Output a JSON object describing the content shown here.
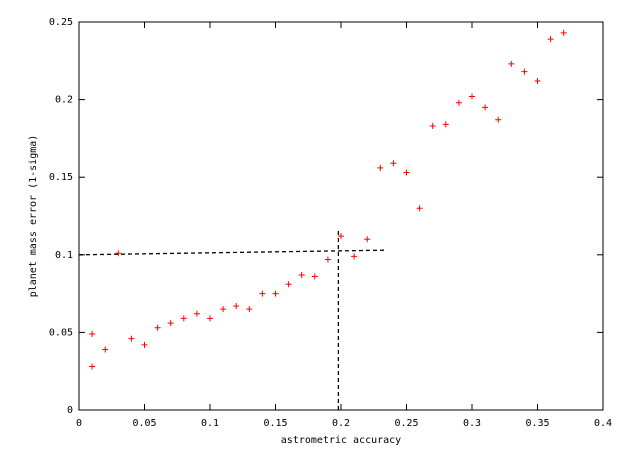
{
  "chart_data": {
    "type": "scatter",
    "xlabel": "astrometric accuracy",
    "ylabel": "planet mass error (1-sigma)",
    "xlim": [
      0,
      0.4
    ],
    "ylim": [
      0,
      0.25
    ],
    "xticks": [
      0,
      0.05,
      0.1,
      0.15,
      0.2,
      0.25,
      0.3,
      0.35,
      0.4
    ],
    "yticks": [
      0,
      0.05,
      0.1,
      0.15,
      0.2,
      0.25
    ],
    "series": [
      {
        "color": "#ff0000",
        "x": [
          0.01,
          0.01,
          0.02,
          0.03,
          0.04,
          0.05,
          0.06,
          0.07,
          0.08,
          0.09,
          0.1,
          0.11,
          0.12,
          0.13,
          0.14,
          0.15,
          0.16,
          0.17,
          0.18,
          0.19,
          0.2,
          0.21,
          0.22,
          0.23,
          0.24,
          0.25,
          0.26,
          0.27,
          0.28,
          0.29,
          0.3,
          0.31,
          0.32,
          0.33,
          0.34,
          0.35,
          0.36,
          0.37
        ],
        "values": [
          0.049,
          0.028,
          0.039,
          0.101,
          0.046,
          0.042,
          0.053,
          0.056,
          0.059,
          0.062,
          0.059,
          0.065,
          0.067,
          0.065,
          0.075,
          0.075,
          0.081,
          0.087,
          0.086,
          0.097,
          0.112,
          0.099,
          0.11,
          0.156,
          0.159,
          0.153,
          0.13,
          0.183,
          0.184,
          0.198,
          0.202,
          0.195,
          0.187,
          0.223,
          0.218,
          0.212,
          0.239,
          0.243
        ]
      }
    ],
    "guide_lines": [
      {
        "x": [
          0,
          0.235
        ],
        "values": [
          0.1,
          0.103
        ]
      },
      {
        "x": [
          0.198,
          0.198
        ],
        "values": [
          0,
          0.117
        ]
      }
    ]
  }
}
